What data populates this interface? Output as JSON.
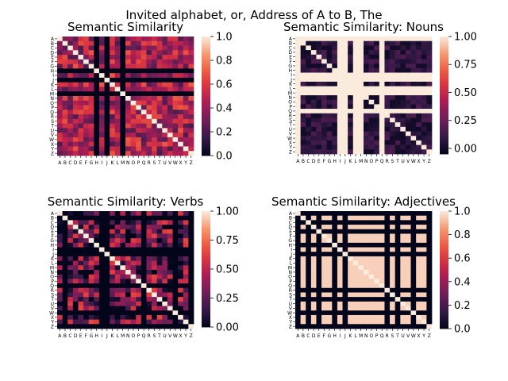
{
  "figure": {
    "suptitle": "Invited alphabet, or, Address of A to B, The"
  },
  "chart_data": [
    {
      "type": "heatmap",
      "title": "Semantic Similarity",
      "xlabels": [
        "A",
        "B",
        "C",
        "D",
        "E",
        "F",
        "G",
        "H",
        "I",
        "J",
        "K",
        "L",
        "M",
        "N",
        "O",
        "P",
        "Q",
        "R",
        "S",
        "T",
        "U",
        "V",
        "W",
        "X",
        "Y",
        "Z"
      ],
      "ylabels": [
        "A",
        "B",
        "C",
        "D",
        "E",
        "F",
        "G",
        "H",
        "I",
        "J",
        "K",
        "L",
        "M",
        "N",
        "O",
        "P",
        "Q",
        "R",
        "S",
        "T",
        "U",
        "V",
        "W",
        "X",
        "Y",
        "Z"
      ],
      "colormap": "rocket",
      "vmin": 0.0,
      "vmax": 1.0,
      "colorbar_ticks": [
        "0.0",
        "0.2",
        "0.4",
        "0.6",
        "0.8",
        "1.0"
      ],
      "zero_rows_cols": [
        "H",
        "J",
        "M"
      ],
      "diagonal_value": 1.0,
      "base_value": 0.45,
      "value_spread": 0.25,
      "seed": 11
    },
    {
      "type": "heatmap",
      "title": "Semantic Similarity: Nouns",
      "xlabels": [
        "A",
        "B",
        "C",
        "D",
        "E",
        "F",
        "G",
        "H",
        "I",
        "J",
        "K",
        "L",
        "M",
        "N",
        "O",
        "P",
        "Q",
        "R",
        "S",
        "T",
        "U",
        "V",
        "W",
        "X",
        "Y",
        "Z"
      ],
      "ylabels": [
        "A",
        "B",
        "C",
        "D",
        "E",
        "F",
        "G",
        "H",
        "I",
        "J",
        "K",
        "L",
        "M",
        "N",
        "O",
        "P",
        "Q",
        "R",
        "S",
        "T",
        "U",
        "V",
        "W",
        "X",
        "Y",
        "Z"
      ],
      "colormap": "rocket",
      "vmin": -0.05,
      "vmax": 1.0,
      "colorbar_ticks": [
        "0.00",
        "0.25",
        "0.50",
        "0.75",
        "1.00"
      ],
      "one_rows_cols": [
        "A",
        "I",
        "J",
        "L",
        "M",
        "Q"
      ],
      "diagonal_value": 1.0,
      "base_value": 0.06,
      "value_spread": 0.12,
      "seed": 23
    },
    {
      "type": "heatmap",
      "title": "Semantic Similarity: Verbs",
      "xlabels": [
        "A",
        "B",
        "C",
        "D",
        "E",
        "F",
        "G",
        "H",
        "I",
        "J",
        "K",
        "L",
        "M",
        "N",
        "O",
        "P",
        "Q",
        "R",
        "S",
        "T",
        "U",
        "V",
        "W",
        "X",
        "Y",
        "Z"
      ],
      "ylabels": [
        "A",
        "B",
        "C",
        "D",
        "E",
        "F",
        "G",
        "H",
        "I",
        "J",
        "K",
        "L",
        "M",
        "N",
        "O",
        "P",
        "Q",
        "R",
        "S",
        "T",
        "U",
        "V",
        "W",
        "X",
        "Y",
        "Z"
      ],
      "colormap": "rocket",
      "vmin": 0.0,
      "vmax": 1.0,
      "colorbar_ticks": [
        "0.00",
        "0.25",
        "0.50",
        "0.75",
        "1.00"
      ],
      "zero_rows_cols": [
        "B",
        "I",
        "J",
        "Q",
        "W",
        "Z"
      ],
      "diagonal_value": 1.0,
      "base_value": 0.3,
      "value_spread": 0.35,
      "seed": 37
    },
    {
      "type": "heatmap",
      "title": "Semantic Similarity: Adjectives",
      "xlabels": [
        "A",
        "B",
        "C",
        "D",
        "E",
        "F",
        "G",
        "H",
        "I",
        "J",
        "K",
        "L",
        "M",
        "N",
        "O",
        "P",
        "Q",
        "R",
        "S",
        "T",
        "U",
        "V",
        "W",
        "X",
        "Y",
        "Z"
      ],
      "ylabels": [
        "A",
        "B",
        "C",
        "D",
        "E",
        "F",
        "G",
        "H",
        "I",
        "J",
        "K",
        "L",
        "M",
        "N",
        "O",
        "P",
        "Q",
        "R",
        "S",
        "T",
        "U",
        "V",
        "W",
        "X",
        "Y",
        "Z"
      ],
      "colormap": "rocket",
      "vmin": 0.0,
      "vmax": 1.0,
      "colorbar_ticks": [
        "0.0",
        "0.2",
        "0.4",
        "0.6",
        "0.8",
        "1.0"
      ],
      "zero_rows_cols": [
        "A",
        "C",
        "E",
        "H",
        "J",
        "R",
        "T",
        "W",
        "Z"
      ],
      "diagonal_value": 1.0,
      "base_value": 1.0,
      "value_spread": 0.0,
      "seed": 51
    }
  ]
}
